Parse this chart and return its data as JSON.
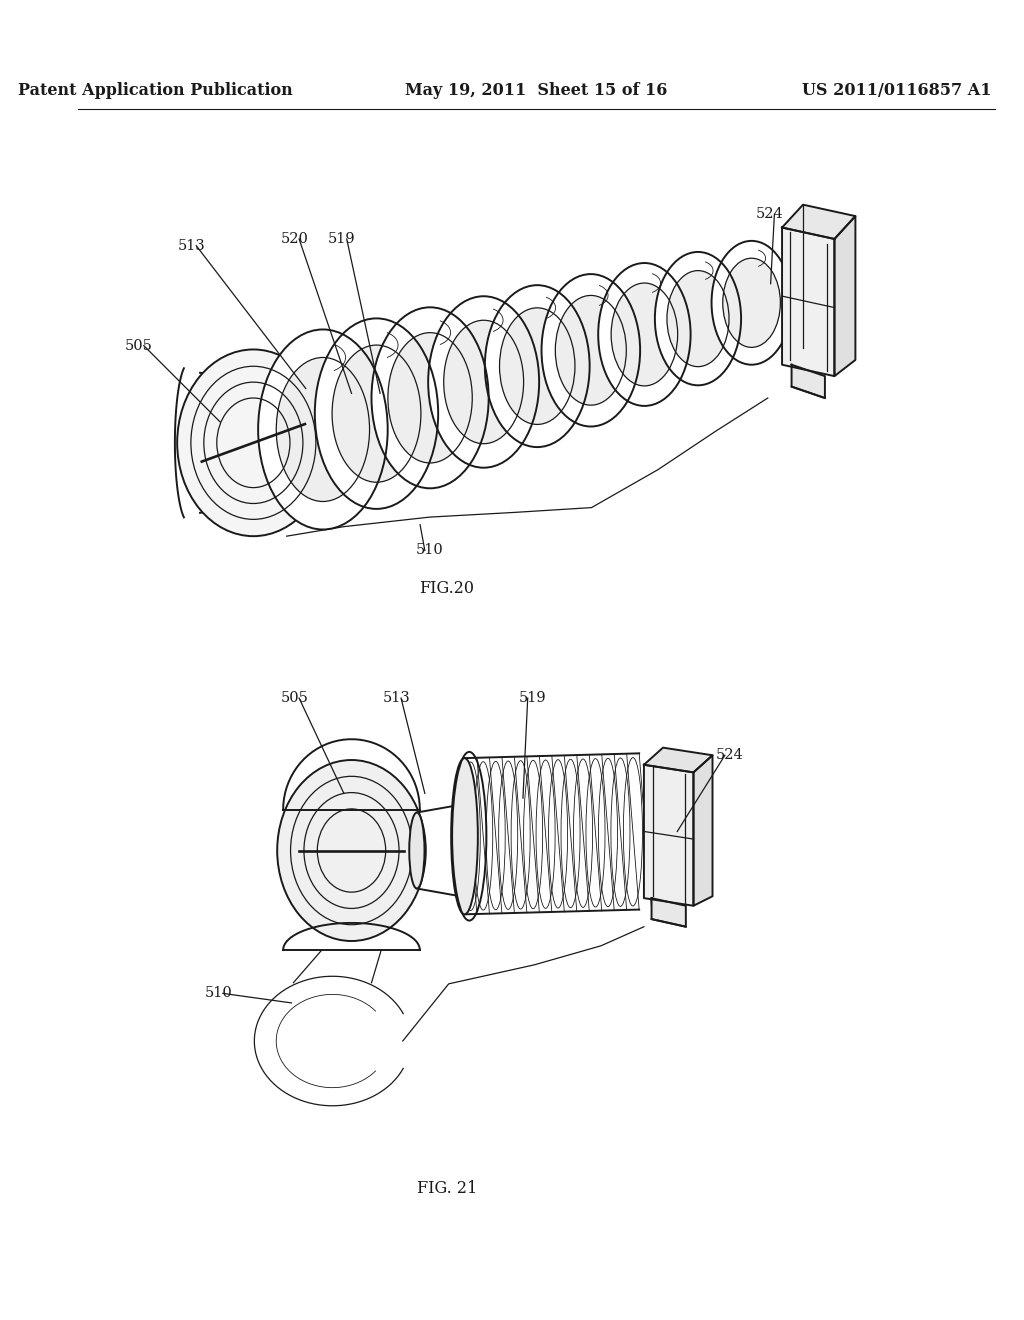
{
  "background_color": "#ffffff",
  "header_left": "Patent Application Publication",
  "header_mid": "May 19, 2011  Sheet 15 of 16",
  "header_right": "US 2011/0116857 A1",
  "fig20_caption": "FIG.20",
  "fig21_caption": "FIG. 21",
  "label_fontsize": 10.5,
  "header_fontsize": 11.5,
  "caption_fontsize": 11.5,
  "line_color": "#1a1a1a",
  "shade_color": "#d8d8d8"
}
